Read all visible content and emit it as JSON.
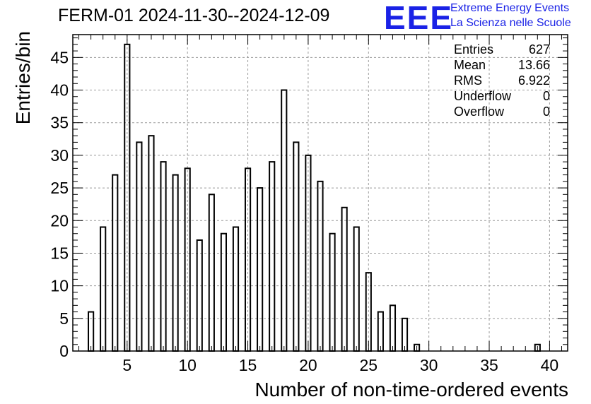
{
  "title": "FERM-01 2024-11-30--2024-12-09",
  "logo": {
    "mark": "EEE",
    "line1": "Extreme Energy Events",
    "line2": "La Scienza nelle Scuole",
    "color": "#1a22e6"
  },
  "stats": [
    {
      "label": "Entries",
      "value": "627"
    },
    {
      "label": "Mean",
      "value": "13.66"
    },
    {
      "label": "RMS",
      "value": "6.922"
    },
    {
      "label": "Underflow",
      "value": "0"
    },
    {
      "label": "Overflow",
      "value": "0"
    }
  ],
  "chart_data": {
    "type": "bar",
    "title": "FERM-01 2024-11-30--2024-12-09",
    "xlabel": "Number of non-time-ordered events",
    "ylabel": "Entries/bin",
    "xlim": [
      0.5,
      41.5
    ],
    "ylim": [
      0,
      48.5
    ],
    "x_ticks": [
      5,
      10,
      15,
      20,
      25,
      30,
      35,
      40
    ],
    "y_ticks": [
      0,
      5,
      10,
      15,
      20,
      25,
      30,
      35,
      40,
      45
    ],
    "grid": true,
    "bar_color": "#000000",
    "bins": [
      2,
      3,
      4,
      5,
      6,
      7,
      8,
      9,
      10,
      11,
      12,
      13,
      14,
      15,
      16,
      17,
      18,
      19,
      20,
      21,
      22,
      23,
      24,
      25,
      26,
      27,
      28,
      29,
      30,
      31,
      32,
      33,
      34,
      35,
      36,
      37,
      38,
      39
    ],
    "values": [
      6,
      19,
      27,
      47,
      32,
      33,
      29,
      27,
      28,
      17,
      24,
      18,
      19,
      28,
      25,
      29,
      40,
      32,
      30,
      26,
      18,
      22,
      19,
      12,
      6,
      7,
      5,
      1,
      0,
      0,
      0,
      0,
      0,
      0,
      0,
      0,
      0,
      1
    ]
  }
}
